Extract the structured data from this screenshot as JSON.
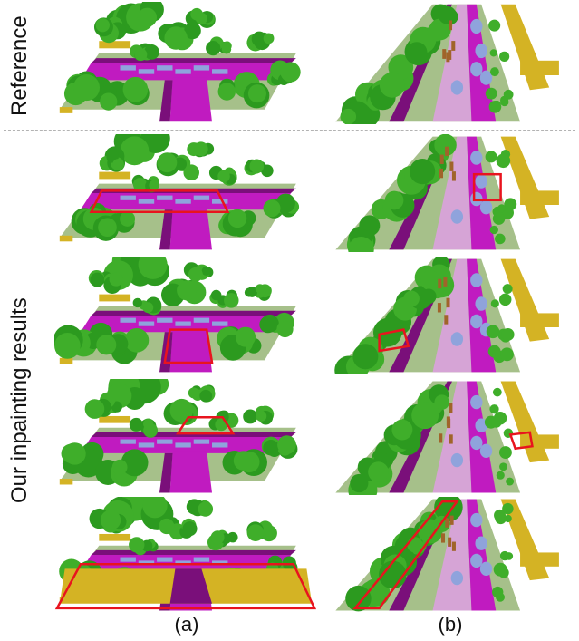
{
  "labels": {
    "reference": "Reference",
    "results": "Our inpainting results",
    "col_a": "(a)",
    "col_b": "(b)"
  },
  "colors": {
    "road": "#c01bc0",
    "sidewalk": "#7a0f7a",
    "terrain": "#a6c08a",
    "vegetation": "#3fae2a",
    "building": "#d4b324",
    "car": "#8fa3dc",
    "highlight": "#e8141e"
  },
  "rows": [
    {
      "row": "reference",
      "a_box": null,
      "b_box": null
    },
    {
      "row": "result-1",
      "a_box": "trapezoid across road (left)",
      "b_box": "small rectangle on road (right)"
    },
    {
      "row": "result-2",
      "a_box": "small box on road (center)",
      "b_box": "small box on sidewalk (left)"
    },
    {
      "row": "result-3",
      "a_box": "small trapezoid upper road",
      "b_box": "small box near right edge"
    },
    {
      "row": "result-4",
      "a_box": "large trapezoid across front",
      "b_box": "long slanted quadrilateral (left)"
    }
  ]
}
